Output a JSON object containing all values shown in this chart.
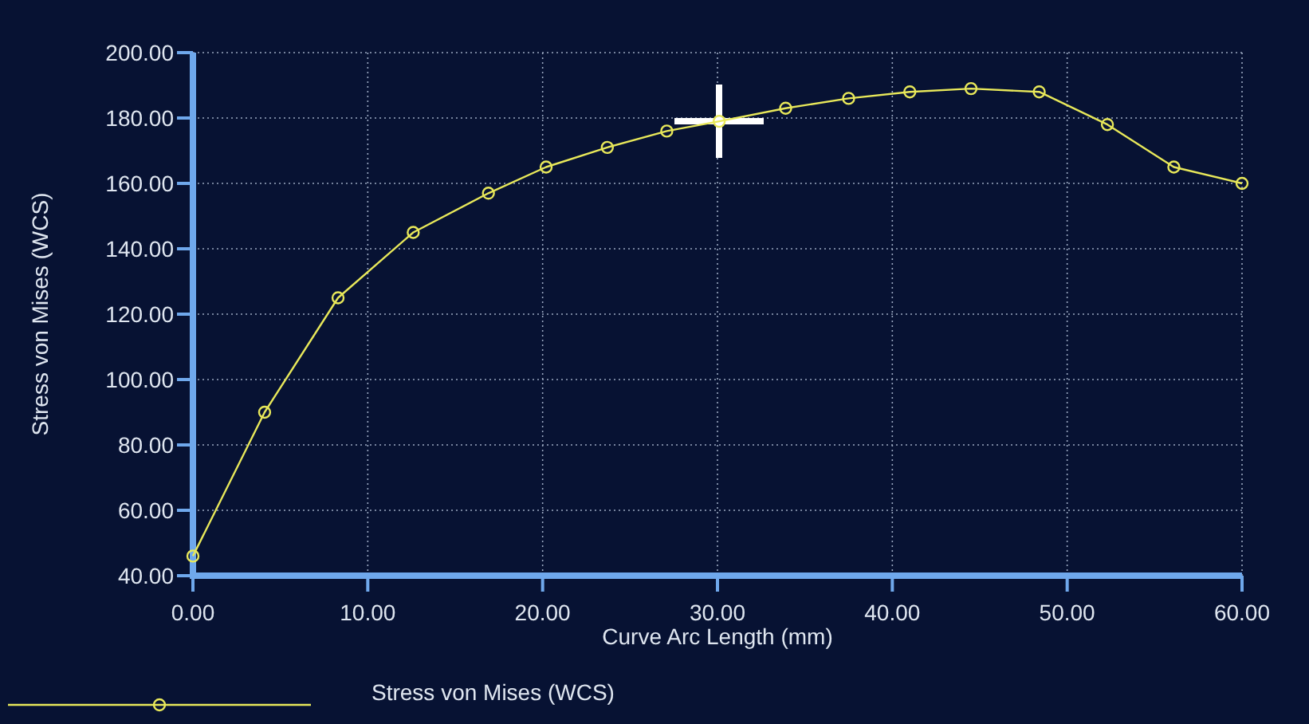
{
  "chart_data": {
    "type": "line",
    "xlabel": "Curve Arc Length (mm)",
    "ylabel": "Stress von Mises (WCS)",
    "x": [
      0,
      4.1,
      8.3,
      12.6,
      16.9,
      20.2,
      23.7,
      27.1,
      30.1,
      33.9,
      37.5,
      41.0,
      44.5,
      48.4,
      52.3,
      56.1,
      60
    ],
    "series": [
      {
        "name": "Stress von Mises (WCS)",
        "color": "#e8e85a",
        "values": [
          46,
          90,
          125,
          145,
          157,
          165,
          171,
          176,
          179,
          183,
          186,
          188,
          189,
          188,
          178,
          165,
          160
        ]
      }
    ],
    "xlim": [
      0,
      60
    ],
    "ylim": [
      40,
      200
    ],
    "xticks": [
      {
        "value": 0,
        "label": "0.00"
      },
      {
        "value": 10,
        "label": "10.00"
      },
      {
        "value": 20,
        "label": "20.00"
      },
      {
        "value": 30,
        "label": "30.00"
      },
      {
        "value": 40,
        "label": "40.00"
      },
      {
        "value": 50,
        "label": "50.00"
      },
      {
        "value": 60,
        "label": "60.00"
      }
    ],
    "yticks": [
      {
        "value": 40,
        "label": "40.00"
      },
      {
        "value": 60,
        "label": "60.00"
      },
      {
        "value": 80,
        "label": "80.00"
      },
      {
        "value": 100,
        "label": "100.00"
      },
      {
        "value": 120,
        "label": "120.00"
      },
      {
        "value": 140,
        "label": "140.00"
      },
      {
        "value": 160,
        "label": "160.00"
      },
      {
        "value": 180,
        "label": "180.00"
      },
      {
        "value": 200,
        "label": "200.00"
      }
    ],
    "grid": true,
    "legend": "bottom left",
    "marker": "circle",
    "line_style": "solid"
  }
}
